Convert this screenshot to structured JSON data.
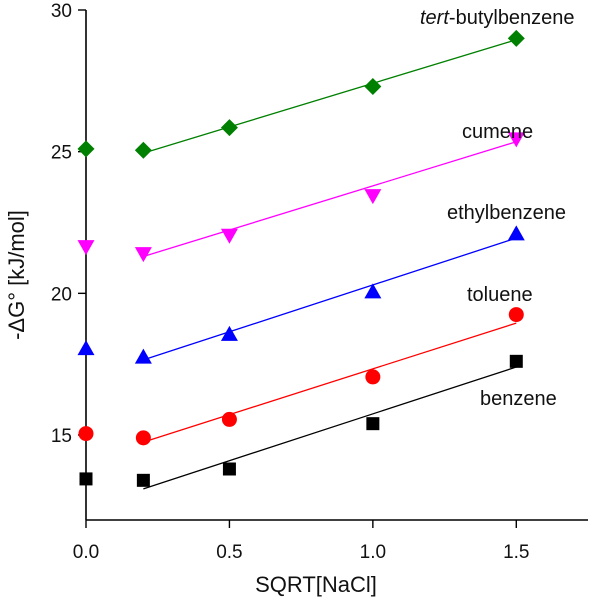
{
  "chart_data": {
    "type": "scatter",
    "xlabel": "SQRT[NaCl]",
    "ylabel": "-ΔG° [kJ/mol]",
    "xlim": [
      0,
      1.75
    ],
    "ylim": [
      12,
      30
    ],
    "xticks": [
      0.0,
      0.5,
      1.0,
      1.5
    ],
    "xtick_labels": [
      "0.0",
      "0.5",
      "1.0",
      "1.5"
    ],
    "yticks": [
      15,
      20,
      25,
      30
    ],
    "ytick_labels": [
      "15",
      "20",
      "25",
      "30"
    ],
    "grid": false,
    "series": [
      {
        "name": "benzene",
        "label_prefix": "",
        "label_suffix": "benzene",
        "marker": "square",
        "color": "#000000",
        "x": [
          0.0,
          0.2,
          0.5,
          1.0,
          1.5
        ],
        "y": [
          13.45,
          13.4,
          13.8,
          15.4,
          17.6
        ],
        "fit": [
          [
            0.2,
            13.1
          ],
          [
            1.5,
            17.4
          ]
        ]
      },
      {
        "name": "toluene",
        "label_prefix": "",
        "label_suffix": "toluene",
        "marker": "circle",
        "color": "#ff0000",
        "x": [
          0.0,
          0.2,
          0.5,
          1.0,
          1.5
        ],
        "y": [
          15.05,
          14.9,
          15.55,
          17.05,
          19.25
        ],
        "fit": [
          [
            0.2,
            14.75
          ],
          [
            1.5,
            18.95
          ]
        ]
      },
      {
        "name": "ethylbenzene",
        "label_prefix": "",
        "label_suffix": "ethylbenzene",
        "marker": "triangle-up",
        "color": "#0000ff",
        "x": [
          0.0,
          0.2,
          0.5,
          1.0,
          1.5
        ],
        "y": [
          18.05,
          17.75,
          18.55,
          20.05,
          22.1
        ],
        "fit": [
          [
            0.2,
            17.65
          ],
          [
            1.5,
            21.95
          ]
        ]
      },
      {
        "name": "cumene",
        "label_prefix": "",
        "label_suffix": "cumene",
        "marker": "triangle-down",
        "color": "#ff00ff",
        "x": [
          0.0,
          0.2,
          0.5,
          1.0,
          1.5
        ],
        "y": [
          21.65,
          21.4,
          22.05,
          23.45,
          25.45
        ],
        "fit": [
          [
            0.2,
            21.3
          ],
          [
            1.5,
            25.35
          ]
        ]
      },
      {
        "name": "tert-butylbenzene",
        "label_prefix": "tert",
        "label_suffix": "-butylbenzene",
        "marker": "diamond",
        "color": "#008000",
        "x": [
          0.0,
          0.2,
          0.5,
          1.0,
          1.5
        ],
        "y": [
          25.1,
          25.05,
          25.85,
          27.3,
          29.0
        ],
        "fit": [
          [
            0.2,
            24.95
          ],
          [
            1.5,
            28.95
          ]
        ]
      }
    ]
  }
}
